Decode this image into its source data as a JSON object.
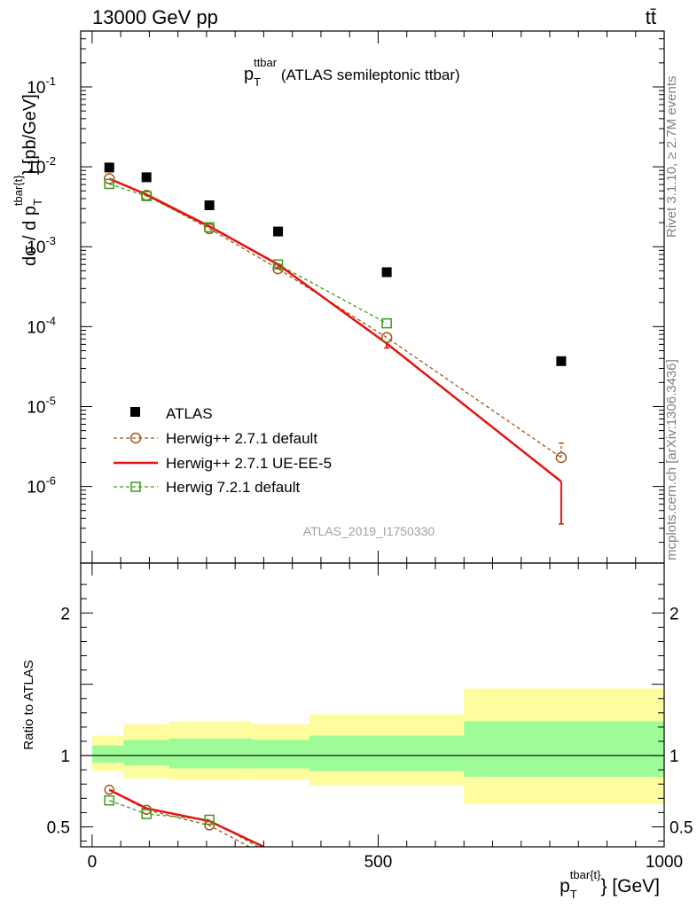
{
  "header": {
    "energy_label": "13000 GeV pp",
    "process_label": "tt̄"
  },
  "side_labels": {
    "rivet": "Rivet 3.1.10, ≥ 2.7M events",
    "source": "mcplots.cern.ch [arXiv:1306.3436]"
  },
  "plot_title": {
    "main": "p",
    "sub": "T",
    "sup": "ttbar",
    "rest": " (ATLAS semileptonic ttbar)"
  },
  "ylabel_top": {
    "prefix": "dσ / d p",
    "sub": "T",
    "sup": "tbar{t}",
    "suffix": "} [pb/GeV]"
  },
  "ylabel_bottom": "Ratio to ATLAS",
  "xlabel": {
    "main": "p",
    "sub": "T",
    "sup": "tbar{t}",
    "suffix": "} [GeV]"
  },
  "analysis_id": "ATLAS_2019_I1750330",
  "colors": {
    "data": "#000000",
    "herwigpp_default": "#a0561b",
    "herwigpp_ueee5": "#e8110f",
    "herwig7": "#3d9a1a",
    "band_inner": "#9dfc97",
    "band_outer": "#fdfda0"
  },
  "chart_data": [
    {
      "type": "scatter",
      "panel": "main",
      "yscale": "log",
      "xlim": [
        -20,
        1000
      ],
      "ylim": [
        1.1e-07,
        0.5
      ],
      "y_tick_labels": [
        "10^-6",
        "10^-5",
        "10^-4",
        "10^-3",
        "10^-2",
        "10^-1"
      ],
      "series": [
        {
          "name": "ATLAS",
          "style": "square-marker",
          "x": [
            30,
            95,
            205,
            325,
            515,
            820
          ],
          "y": [
            0.0098,
            0.0074,
            0.0033,
            0.00155,
            0.00048,
            3.7e-05
          ]
        },
        {
          "name": "Herwig++ 2.7.1 default",
          "style": "dashed-circle",
          "x": [
            30,
            95,
            205,
            325,
            515,
            820
          ],
          "y": [
            0.0071,
            0.0044,
            0.00168,
            0.00053,
            7.3e-05,
            2.3e-06
          ],
          "yerr_high": [
            0,
            0,
            0,
            0,
            0,
            3.5e-06
          ]
        },
        {
          "name": "Herwig++ 2.7.1 UE-EE-5",
          "style": "solid-line",
          "x": [
            30,
            95,
            205,
            325,
            515,
            820
          ],
          "y": [
            0.0071,
            0.0045,
            0.0018,
            0.0006,
            6.15e-05,
            1.15e-06
          ],
          "yerr_low": [
            0,
            0,
            0,
            0.00054,
            5.4e-05,
            3.4e-07
          ]
        },
        {
          "name": "Herwig 7.2.1 default",
          "style": "dashed-square",
          "x": [
            30,
            95,
            205,
            325,
            515
          ],
          "y": [
            0.0061,
            0.0043,
            0.00175,
            0.0006,
            0.00011
          ]
        }
      ]
    },
    {
      "type": "line",
      "panel": "ratio",
      "xlim": [
        -20,
        1000
      ],
      "ylim": [
        0.36,
        2.35
      ],
      "xticks": [
        0,
        500,
        1000
      ],
      "yticks": [
        0.5,
        1,
        2
      ],
      "bands": [
        {
          "x0": 0,
          "x1": 55,
          "inner": [
            0.95,
            1.07
          ],
          "outer": [
            0.89,
            1.14
          ]
        },
        {
          "x0": 55,
          "x1": 135,
          "inner": [
            0.93,
            1.11
          ],
          "outer": [
            0.84,
            1.22
          ]
        },
        {
          "x0": 135,
          "x1": 280,
          "inner": [
            0.91,
            1.12
          ],
          "outer": [
            0.83,
            1.24
          ]
        },
        {
          "x0": 280,
          "x1": 380,
          "inner": [
            0.91,
            1.11
          ],
          "outer": [
            0.83,
            1.22
          ]
        },
        {
          "x0": 380,
          "x1": 650,
          "inner": [
            0.89,
            1.14
          ],
          "outer": [
            0.79,
            1.29
          ]
        },
        {
          "x0": 650,
          "x1": 1000,
          "inner": [
            0.85,
            1.24
          ],
          "outer": [
            0.66,
            1.47
          ]
        }
      ],
      "series": [
        {
          "name": "Herwig++ 2.7.1 default",
          "x": [
            30,
            95,
            205,
            275
          ],
          "y": [
            0.76,
            0.62,
            0.51,
            0.36
          ]
        },
        {
          "name": "Herwig++ 2.7.1 UE-EE-5",
          "x": [
            30,
            95,
            205,
            300
          ],
          "y": [
            0.76,
            0.63,
            0.54,
            0.36
          ]
        },
        {
          "name": "Herwig 7.2.1 default",
          "x": [
            30,
            95,
            205,
            290
          ],
          "y": [
            0.685,
            0.59,
            0.55,
            0.36
          ]
        }
      ]
    }
  ]
}
